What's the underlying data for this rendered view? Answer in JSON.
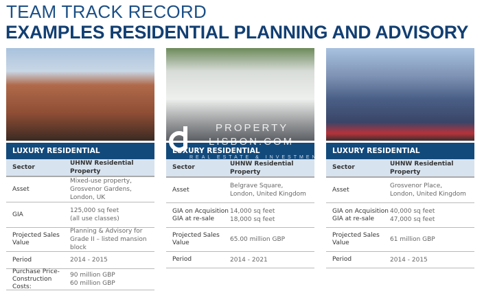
{
  "header": {
    "title_line1": "TEAM TRACK RECORD",
    "title_line2": "EXAMPLES RESIDENTIAL PLANNING AND ADVISORY"
  },
  "watermark": {
    "line1": "PROPERTY",
    "line2": "LISBON.COM",
    "line3": "REAL ESTATE & INVESTMENT"
  },
  "colors": {
    "title": "#1b4f86",
    "header_bar": "#134a7c",
    "sector_row": "#d7e3ef"
  },
  "cards": [
    {
      "category": "LUXURY RESIDENTIAL",
      "rows": [
        {
          "label": "Sector",
          "value": "UHNW Residential Property"
        },
        {
          "label": "Asset",
          "value": "Mixed-use property,\nGrosvenor Gardens, London, UK"
        },
        {
          "label": "GIA",
          "value": "125,000 sq feet\n(all use classes)"
        },
        {
          "label": "Projected Sales\nValue",
          "value": "Planning & Advisory for\nGrade II – listed mansion block"
        },
        {
          "label": "Period",
          "value": "2014 - 2015"
        },
        {
          "label": "Purchase Price-\nConstruction Costs:",
          "value": "90 million GBP\n60 million GBP"
        }
      ]
    },
    {
      "category": "LUXURY RESIDENTIAL",
      "rows": [
        {
          "label": "Sector",
          "value": "UHNW Residential Property"
        },
        {
          "label": "Asset",
          "value": "Belgrave Square,\nLondon, United Kingdom"
        },
        {
          "label": "GIA on Acquisition\nGIA at re-sale",
          "value": "14,000 sq feet\n18,000 sq feet"
        },
        {
          "label": "Projected Sales\nValue",
          "value": "65.00 million GBP"
        },
        {
          "label": "Period",
          "value": "2014 - 2021"
        }
      ]
    },
    {
      "category": "LUXURY RESIDENTIAL",
      "rows": [
        {
          "label": "Sector",
          "value": "UHNW Residential Property"
        },
        {
          "label": "Asset",
          "value": "Grosvenor Place,\nLondon, United Kingdom"
        },
        {
          "label": "GIA on Acquisition\nGIA at re-sale",
          "value": "40,000 sq feet\n47,000 sq feet"
        },
        {
          "label": "Projected Sales\nValue",
          "value": "61 million GBP"
        },
        {
          "label": "Period",
          "value": "2014 - 2015"
        }
      ]
    }
  ]
}
